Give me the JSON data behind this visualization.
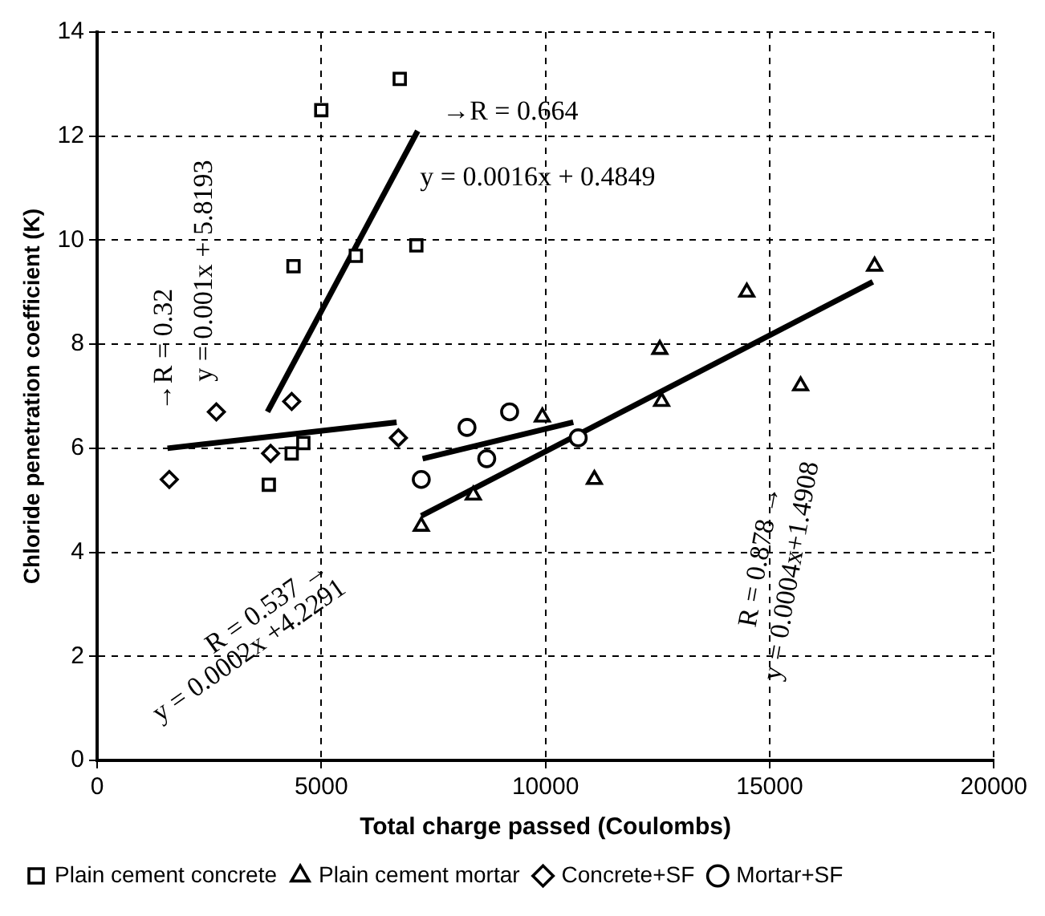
{
  "chart_data": {
    "type": "scatter",
    "xlabel": "Total charge passed (Coulombs)",
    "ylabel": "Chloride penetration coefficient (K)",
    "xlim": [
      0,
      20000
    ],
    "xticks": [
      0,
      5000,
      10000,
      15000,
      20000
    ],
    "ylim": [
      0,
      14
    ],
    "yticks": [
      0,
      2,
      4,
      6,
      8,
      10,
      12,
      14
    ],
    "grid": true,
    "legend": "bottom",
    "series": [
      {
        "name": "Plain cement concrete",
        "color": "#000000",
        "marker": "square",
        "x": [
          5000,
          6750,
          4380,
          5770,
          7120,
          4340,
          3830,
          4600
        ],
        "values": [
          12.5,
          13.1,
          9.5,
          9.7,
          9.9,
          5.9,
          5.3,
          6.1
        ]
      },
      {
        "name": "Plain cement mortar",
        "color": "#000000",
        "marker": "triangle",
        "x": [
          7230,
          8390,
          9930,
          11090,
          12550,
          12590,
          14490,
          15690,
          17340
        ],
        "values": [
          4.5,
          5.1,
          6.6,
          5.4,
          7.9,
          6.9,
          9.0,
          7.2,
          9.5
        ]
      },
      {
        "name": "Concrete+SF",
        "color": "#000000",
        "marker": "diamond",
        "x": [
          1610,
          2660,
          4340,
          3870,
          6720
        ],
        "values": [
          5.4,
          6.7,
          6.9,
          5.9,
          6.2
        ]
      },
      {
        "name": "Mortar+SF",
        "color": "#000000",
        "marker": "circle",
        "x": [
          7230,
          8250,
          8690,
          9200,
          10730
        ],
        "values": [
          5.4,
          6.4,
          5.8,
          6.7,
          6.2
        ]
      },
      {
        "type": "line",
        "color": "#000000",
        "x": [
          3800,
          7150
        ],
        "values": [
          6.7,
          12.1
        ]
      },
      {
        "type": "line",
        "color": "#000000",
        "x": [
          1570,
          6680
        ],
        "values": [
          6.0,
          6.5
        ]
      },
      {
        "type": "line",
        "color": "#000000",
        "x": [
          7260,
          10620
        ],
        "values": [
          5.8,
          6.5
        ]
      },
      {
        "type": "line",
        "color": "#000000",
        "x": [
          7230,
          17300
        ],
        "values": [
          4.7,
          9.2
        ]
      }
    ],
    "annotations": [
      "→R = 0.32",
      "y = 0.001x + 5.8193",
      "→R = 0.664",
      "y = 0.0016x + 0.4849",
      "R = 0.537 →",
      "y = 0.0002x +4.2291",
      "R = 0.878 →",
      "y = 0.0004x+1.4908"
    ]
  }
}
